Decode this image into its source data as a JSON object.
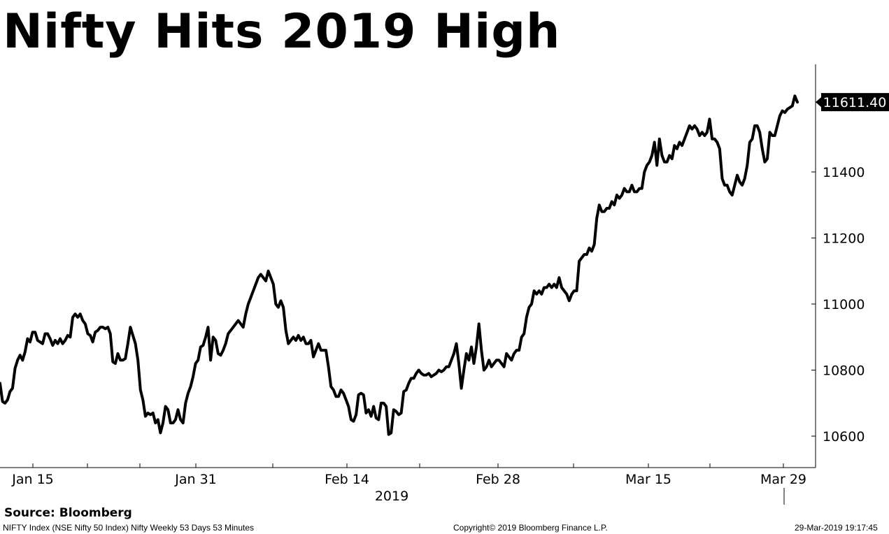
{
  "title": "Nifty Hits 2019 High",
  "source": "Source: Bloomberg",
  "footer": {
    "left": "NIFTY Index (NSE Nifty 50 Index) Nifty Weekly 53 Days 53 Minutes",
    "center": "Copyright© 2019 Bloomberg Finance L.P.",
    "right": "29-Mar-2019 19:17:45"
  },
  "chart_data": {
    "type": "line",
    "title": "Nifty Hits 2019 High",
    "xlabel": "2019",
    "ylabel": "",
    "ylim": [
      10500,
      11720
    ],
    "yticks": [
      10600,
      10800,
      11000,
      11200,
      11400
    ],
    "x_tick_labels": [
      "Jan 15",
      "Jan 31",
      "Feb 14",
      "Feb 28",
      "Mar 15",
      "Mar 29"
    ],
    "last_value_label": "11611.40",
    "grid": false,
    "legend": "none",
    "line_color": "#000000",
    "series": [
      {
        "values": [
          10760,
          10705,
          10700,
          10710,
          10735,
          10745,
          10805,
          10830,
          10845,
          10830,
          10855,
          10895,
          10885,
          10915,
          10915,
          10890,
          10885,
          10880,
          10910,
          10910,
          10895,
          10875,
          10890,
          10880,
          10895,
          10880,
          10890,
          10905,
          10900,
          10960,
          10970,
          10960,
          10970,
          10950,
          10940,
          10910,
          10905,
          10885,
          10915,
          10920,
          10930,
          10930,
          10925,
          10930,
          10910,
          10825,
          10820,
          10850,
          10830,
          10830,
          10835,
          10880,
          10930,
          10905,
          10880,
          10830,
          10740,
          10710,
          10660,
          10670,
          10665,
          10670,
          10640,
          10650,
          10610,
          10640,
          10690,
          10680,
          10640,
          10640,
          10650,
          10680,
          10650,
          10640,
          10700,
          10730,
          10750,
          10780,
          10820,
          10830,
          10870,
          10875,
          10900,
          10930,
          10830,
          10900,
          10890,
          10850,
          10845,
          10860,
          10880,
          10910,
          10920,
          10930,
          10940,
          10950,
          10940,
          10930,
          10970,
          11000,
          11020,
          11040,
          11060,
          11080,
          11090,
          11080,
          11070,
          11100,
          11080,
          11060,
          11000,
          10990,
          11010,
          10990,
          10920,
          10880,
          10890,
          10900,
          10890,
          10905,
          10890,
          10900,
          10880,
          10880,
          10890,
          10840,
          10860,
          10880,
          10860,
          10860,
          10860,
          10810,
          10750,
          10740,
          10720,
          10720,
          10740,
          10730,
          10710,
          10690,
          10650,
          10645,
          10665,
          10725,
          10730,
          10725,
          10670,
          10680,
          10660,
          10690,
          10655,
          10650,
          10700,
          10700,
          10690,
          10605,
          10610,
          10680,
          10675,
          10665,
          10670,
          10735,
          10740,
          10760,
          10775,
          10775,
          10790,
          10800,
          10790,
          10785,
          10785,
          10790,
          10780,
          10785,
          10790,
          10800,
          10795,
          10800,
          10810,
          10810,
          10830,
          10850,
          10880,
          10820,
          10745,
          10800,
          10850,
          10830,
          10870,
          10820,
          10870,
          10940,
          10860,
          10800,
          10810,
          10830,
          10810,
          10820,
          10830,
          10830,
          10820,
          10810,
          10850,
          10840,
          10830,
          10850,
          10860,
          10860,
          10900,
          10910,
          10960,
          10990,
          11000,
          11040,
          11030,
          11040,
          11030,
          11050,
          11050,
          11060,
          11050,
          11060,
          11050,
          11080,
          11050,
          11040,
          11030,
          11010,
          11030,
          11040,
          11040,
          11130,
          11140,
          11150,
          11150,
          11170,
          11160,
          11180,
          11260,
          11300,
          11280,
          11280,
          11290,
          11290,
          11310,
          11300,
          11330,
          11320,
          11330,
          11350,
          11340,
          11340,
          11360,
          11340,
          11340,
          11350,
          11350,
          11400,
          11420,
          11430,
          11450,
          11490,
          11420,
          11500,
          11450,
          11430,
          11430,
          11450,
          11440,
          11480,
          11470,
          11490,
          11480,
          11500,
          11520,
          11540,
          11530,
          11540,
          11530,
          11510,
          11520,
          11510,
          11520,
          11560,
          11500,
          11500,
          11490,
          11470,
          11380,
          11360,
          11360,
          11340,
          11330,
          11360,
          11390,
          11370,
          11360,
          11380,
          11420,
          11490,
          11500,
          11540,
          11540,
          11520,
          11470,
          11430,
          11440,
          11520,
          11510,
          11510,
          11540,
          11570,
          11585,
          11580,
          11590,
          11595,
          11600,
          11630,
          11611.4
        ]
      }
    ]
  }
}
